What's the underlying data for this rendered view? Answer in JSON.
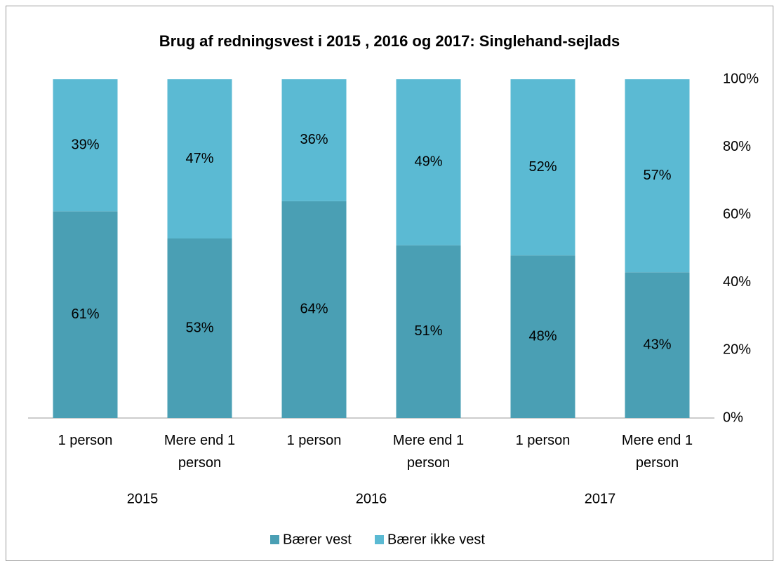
{
  "chart_data": {
    "type": "stacked_bar",
    "title": "Brug af redningsvest i 2015 , 2016 og 2017: Singlehand-sejlads",
    "categories": [
      "1 person",
      "Mere end 1 person",
      "1 person",
      "Mere end 1 person",
      "1 person",
      "Mere end 1 person"
    ],
    "groups": [
      "2015",
      "2016",
      "2017"
    ],
    "series": [
      {
        "name": "Bærer vest",
        "color": "#4a9fb4",
        "values": [
          61,
          53,
          64,
          51,
          48,
          43
        ],
        "value_labels": [
          "61%",
          "53%",
          "64%",
          "51%",
          "48%",
          "43%"
        ]
      },
      {
        "name": "Bærer ikke vest",
        "color": "#5bbad3",
        "values": [
          39,
          47,
          36,
          49,
          52,
          57
        ],
        "value_labels": [
          "39%",
          "47%",
          "36%",
          "49%",
          "52%",
          "57%"
        ]
      }
    ],
    "ylim": [
      0,
      100
    ],
    "yticks": [
      {
        "value": 0,
        "label": "0%"
      },
      {
        "value": 20,
        "label": "20%"
      },
      {
        "value": 40,
        "label": "40%"
      },
      {
        "value": 60,
        "label": "60%"
      },
      {
        "value": 80,
        "label": "80%"
      },
      {
        "value": 100,
        "label": "100%"
      }
    ],
    "legend": "bottom"
  }
}
